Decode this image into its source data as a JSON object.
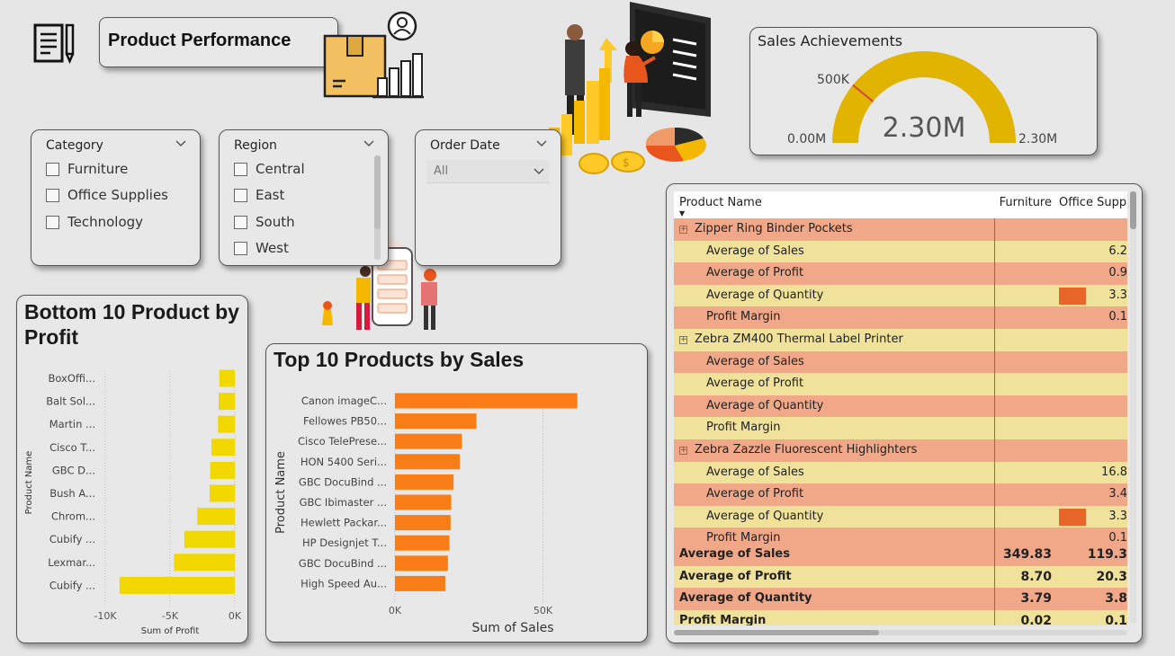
{
  "header": {
    "title": "Product Performance"
  },
  "slicers": {
    "category": {
      "title": "Category",
      "items": [
        "Furniture",
        "Office Supplies",
        "Technology"
      ]
    },
    "region": {
      "title": "Region",
      "items": [
        "Central",
        "East",
        "South",
        "West"
      ]
    },
    "order_date": {
      "title": "Order Date",
      "selected": "All"
    }
  },
  "gauge": {
    "title": "Sales Achievements",
    "value_label": "2.30M",
    "min_label": "0.00M",
    "max_label": "2.30M",
    "target_label": "500K",
    "value": 2.3,
    "max": 2.3,
    "target": 0.5,
    "colors": {
      "fill": "#e0b400",
      "target": "#d64545"
    }
  },
  "bottom10": {
    "title": "Bottom 10 Product by Profit",
    "chart_data": {
      "type": "bar",
      "orientation": "horizontal",
      "categories": [
        "BoxOffi...",
        "Balt Sol...",
        "Martin ...",
        "Cisco T...",
        "GBC D...",
        "Bush A...",
        "Chrom...",
        "Cubify ...",
        "Lexmar...",
        "Cubify ..."
      ],
      "values": [
        -1200,
        -1250,
        -1300,
        -1800,
        -1900,
        -1950,
        -2900,
        -3900,
        -4700,
        -8900
      ],
      "xlabel": "Sum of Profit",
      "ylabel": "Product Name",
      "xlim": [
        -10000,
        0
      ],
      "xticks": [
        "-10K",
        "-5K",
        "0K"
      ],
      "color": "#f0d800",
      "grid": true
    }
  },
  "top10": {
    "title": "Top 10 Products by Sales",
    "chart_data": {
      "type": "bar",
      "orientation": "horizontal",
      "categories": [
        "Canon imageC...",
        "Fellowes PB50...",
        "Cisco TelePrese...",
        "HON 5400 Seri...",
        "GBC DocuBind ...",
        "GBC Ibimaster ...",
        "Hewlett Packar...",
        "HP Designjet T...",
        "GBC DocuBind ...",
        "High Speed Au..."
      ],
      "values": [
        61600,
        27500,
        22600,
        21900,
        19800,
        19000,
        18800,
        18400,
        17900,
        17000
      ],
      "xlabel": "Sum of Sales",
      "ylabel": "Product Name",
      "xlim": [
        0,
        62000
      ],
      "xticks": [
        "0K",
        "50K"
      ],
      "color": "#f97d16",
      "grid": true
    }
  },
  "matrix": {
    "columns": [
      "Product Name",
      "Furniture",
      "Office Suppli"
    ],
    "rows": [
      {
        "type": "group",
        "label": "Zipper Ring Binder Pockets",
        "c1": "",
        "c2": ""
      },
      {
        "type": "measure",
        "label": "Average of Sales",
        "c1": "",
        "c2": "6.2"
      },
      {
        "type": "measure",
        "label": "Average of Profit",
        "c1": "",
        "c2": "0.9"
      },
      {
        "type": "measure",
        "label": "Average of Quantity",
        "c1": "",
        "c2": "3.3"
      },
      {
        "type": "measure",
        "label": "Profit Margin",
        "c1": "",
        "c2": "0.1"
      },
      {
        "type": "group",
        "label": "Zebra ZM400 Thermal Label Printer",
        "c1": "",
        "c2": ""
      },
      {
        "type": "measure",
        "label": "Average of Sales",
        "c1": "",
        "c2": ""
      },
      {
        "type": "measure",
        "label": "Average of Profit",
        "c1": "",
        "c2": ""
      },
      {
        "type": "measure",
        "label": "Average of Quantity",
        "c1": "",
        "c2": ""
      },
      {
        "type": "measure",
        "label": "Profit Margin",
        "c1": "",
        "c2": ""
      },
      {
        "type": "group",
        "label": "Zebra Zazzle Fluorescent Highlighters",
        "c1": "",
        "c2": ""
      },
      {
        "type": "measure",
        "label": "Average of Sales",
        "c1": "",
        "c2": "16.8"
      },
      {
        "type": "measure",
        "label": "Average of Profit",
        "c1": "",
        "c2": "3.4"
      },
      {
        "type": "measure",
        "label": "Average of Quantity",
        "c1": "",
        "c2": "3.3"
      },
      {
        "type": "measure",
        "label": "Profit Margin",
        "c1": "",
        "c2": "0.1"
      }
    ],
    "totals": [
      {
        "label": "Average of Sales",
        "c1": "349.83",
        "c2": "119.3"
      },
      {
        "label": "Average of Profit",
        "c1": "8.70",
        "c2": "20.3"
      },
      {
        "label": "Average of Quantity",
        "c1": "3.79",
        "c2": "3.8"
      },
      {
        "label": "Profit Margin",
        "c1": "0.02",
        "c2": "0.1"
      }
    ],
    "colors": {
      "row_a": "#f0a888",
      "row_b": "#f0e19b",
      "databar": "#e8662a"
    }
  }
}
